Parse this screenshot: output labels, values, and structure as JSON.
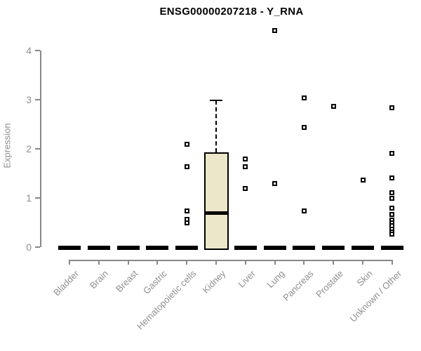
{
  "title": "ENSG00000207218 - Y_RNA",
  "chart_data": {
    "type": "boxplot",
    "title": "ENSG00000207218 - Y_RNA",
    "xlabel": "",
    "ylabel": "Expression",
    "ylim": [
      0,
      4.45
    ],
    "yticks": [
      0,
      1,
      2,
      3,
      4
    ],
    "grid": false,
    "legend": "none",
    "categories": [
      "Bladder",
      "Brain",
      "Breast",
      "Gastric",
      "Hematopoietic cells",
      "Kidney",
      "Liver",
      "Lung",
      "Pancreas",
      "Prostate",
      "Skin",
      "Unknown / Other"
    ],
    "series": [
      {
        "name": "Bladder",
        "q1": 0,
        "median": 0,
        "q3": 0,
        "whisker_low": 0,
        "whisker_high": 0,
        "outliers": []
      },
      {
        "name": "Brain",
        "q1": 0,
        "median": 0,
        "q3": 0,
        "whisker_low": 0,
        "whisker_high": 0,
        "outliers": []
      },
      {
        "name": "Breast",
        "q1": 0,
        "median": 0,
        "q3": 0,
        "whisker_low": 0,
        "whisker_high": 0,
        "outliers": []
      },
      {
        "name": "Gastric",
        "q1": 0,
        "median": 0,
        "q3": 0,
        "whisker_low": 0,
        "whisker_high": 0,
        "outliers": []
      },
      {
        "name": "Hematopoietic cells",
        "q1": 0,
        "median": 0,
        "q3": 0,
        "whisker_low": 0,
        "whisker_high": 0,
        "outliers": [
          2.09,
          1.63,
          0.74,
          0.57,
          0.5
        ]
      },
      {
        "name": "Kidney",
        "q1": 0,
        "median": 0.7,
        "q3": 1.93,
        "whisker_low": 0,
        "whisker_high": 2.98,
        "outliers": []
      },
      {
        "name": "Liver",
        "q1": 0,
        "median": 0,
        "q3": 0,
        "whisker_low": 0,
        "whisker_high": 0,
        "outliers": [
          1.8,
          1.64,
          1.19
        ]
      },
      {
        "name": "Lung",
        "q1": 0,
        "median": 0,
        "q3": 0,
        "whisker_low": 0,
        "whisker_high": 0,
        "outliers": [
          4.41,
          1.3
        ]
      },
      {
        "name": "Pancreas",
        "q1": 0,
        "median": 0,
        "q3": 0,
        "whisker_low": 0,
        "whisker_high": 0,
        "outliers": [
          3.04,
          2.43,
          0.73
        ]
      },
      {
        "name": "Prostate",
        "q1": 0,
        "median": 0,
        "q3": 0,
        "whisker_low": 0,
        "whisker_high": 0,
        "outliers": [
          2.86
        ]
      },
      {
        "name": "Skin",
        "q1": 0,
        "median": 0,
        "q3": 0,
        "whisker_low": 0,
        "whisker_high": 0,
        "outliers": [
          1.36
        ]
      },
      {
        "name": "Unknown / Other",
        "q1": 0,
        "median": 0,
        "q3": 0,
        "whisker_low": 0,
        "whisker_high": 0,
        "outliers": [
          2.84,
          1.91,
          1.41,
          1.11,
          0.99,
          0.79,
          0.66,
          0.55,
          0.49,
          0.43,
          0.37,
          0.31,
          0.26
        ]
      }
    ],
    "colors": {
      "box_fill": "#ece7c9",
      "box_border": "#000000",
      "median": "#000000",
      "outlier_border": "#000000",
      "outlier_fill": "#ffffff",
      "axis": "#888888",
      "text_muted": "#8e8e8e",
      "title": "#000000",
      "background": "#ffffff"
    }
  }
}
